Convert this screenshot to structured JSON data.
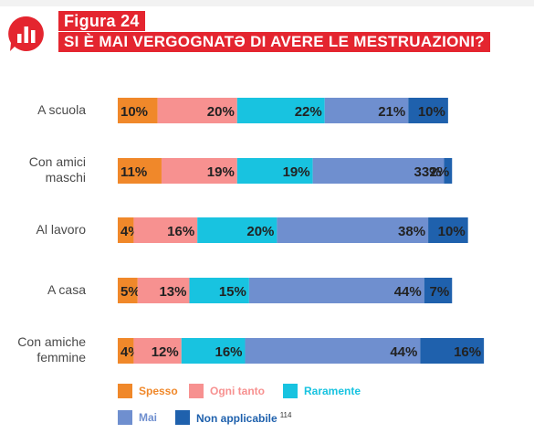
{
  "title": {
    "figure": "Figura 24",
    "main": "SI È MAI VERGOGNATƏ DI AVERE LE MESTRUAZIONI?"
  },
  "footnote": "114",
  "chart_data": {
    "type": "bar",
    "orientation": "horizontal",
    "stacked": true,
    "categories": [
      "A scuola",
      "Con amici maschi",
      "Al lavoro",
      "A casa",
      "Con amiche femmine"
    ],
    "category_lines": [
      [
        "A scuola"
      ],
      [
        "Con amici",
        "maschi"
      ],
      [
        "Al lavoro"
      ],
      [
        "A casa"
      ],
      [
        "Con amiche",
        "femmine"
      ]
    ],
    "series": [
      {
        "name": "Spesso",
        "color": "#f0882a",
        "values": [
          10,
          11,
          4,
          5,
          4
        ]
      },
      {
        "name": "Ogni tanto",
        "color": "#f79190",
        "values": [
          20,
          19,
          16,
          13,
          12
        ]
      },
      {
        "name": "Raramente",
        "color": "#18c3e0",
        "values": [
          22,
          19,
          20,
          15,
          16
        ]
      },
      {
        "name": "Mai",
        "color": "#6f8fcf",
        "values": [
          21,
          33,
          38,
          44,
          44
        ]
      },
      {
        "name": "Non applicabile",
        "color": "#1f61ad",
        "values": [
          10,
          2,
          10,
          7,
          16
        ]
      }
    ],
    "value_suffix": "%",
    "legend_position": "bottom-left",
    "grid": false
  }
}
